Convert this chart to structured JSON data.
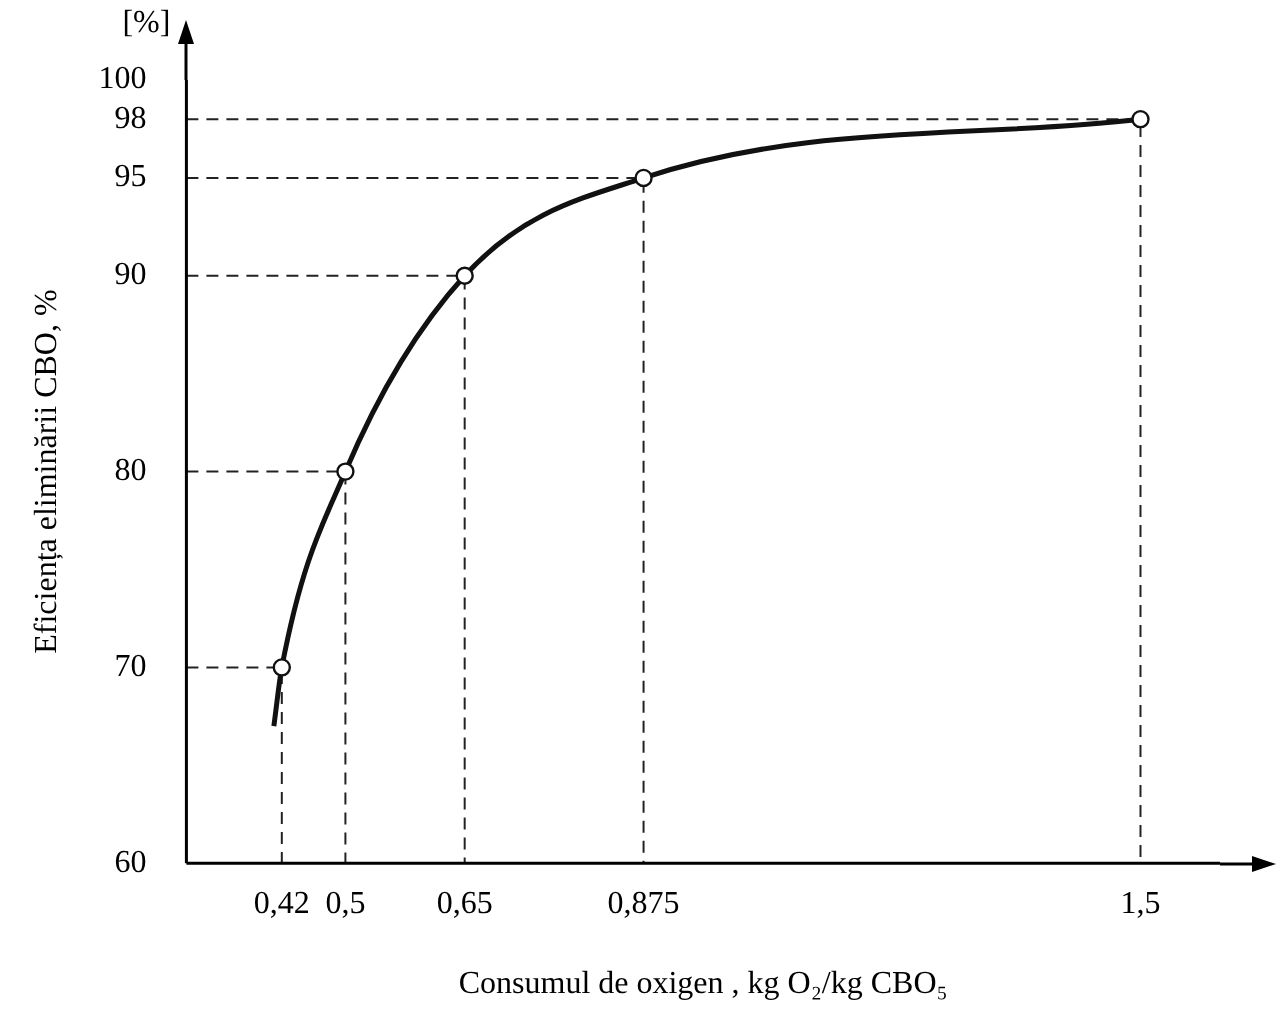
{
  "chart_data": {
    "type": "line",
    "xlabel": "Consumul de oxigen , kg O₂/kg CBO₅",
    "ylabel": "Eficiența eliminării CBO, %",
    "annotations": [
      "[%]"
    ],
    "series": [
      {
        "color": "#111111",
        "marker": "none",
        "x": [
          0.41,
          0.42,
          0.5,
          0.65,
          0.875,
          1.5
        ],
        "values": [
          67,
          70,
          80,
          90,
          95,
          98
        ]
      },
      {
        "color": "#222222",
        "marker": "none",
        "line_style": "dashed",
        "x": [
          0.3,
          0.42,
          0.42
        ],
        "values": [
          70,
          70,
          60
        ]
      },
      {
        "color": "#222222",
        "marker": "none",
        "line_style": "dashed",
        "x": [
          0.3,
          0.5,
          0.5
        ],
        "values": [
          80,
          80,
          60
        ]
      },
      {
        "color": "#222222",
        "marker": "none",
        "line_style": "dashed",
        "x": [
          0.3,
          0.65,
          0.65
        ],
        "values": [
          90,
          90,
          60
        ]
      },
      {
        "color": "#222222",
        "marker": "none",
        "line_style": "dashed",
        "x": [
          0.3,
          0.875,
          0.875
        ],
        "values": [
          95,
          95,
          60
        ]
      },
      {
        "color": "#222222",
        "marker": "none",
        "line_style": "dashed",
        "x": [
          0.3,
          1.5,
          1.5
        ],
        "values": [
          98,
          98,
          60
        ]
      },
      {
        "type": "scatter",
        "color": "#111111",
        "marker": "circle",
        "x": [
          0.42,
          0.5,
          0.65,
          0.875,
          1.5
        ],
        "values": [
          70,
          80,
          90,
          95,
          98
        ]
      }
    ],
    "xlim": [
      0.3,
      1.6
    ],
    "xticks": [
      {
        "value": 0.42,
        "label": "0,42"
      },
      {
        "value": 0.5,
        "label": "0,5"
      },
      {
        "value": 0.65,
        "label": "0,65"
      },
      {
        "value": 0.875,
        "label": "0,875"
      },
      {
        "value": 1.5,
        "label": "1,5"
      }
    ],
    "ylim": [
      60,
      100
    ],
    "yticks": [
      60,
      70,
      80,
      90,
      95,
      98,
      100
    ],
    "legend": false
  }
}
